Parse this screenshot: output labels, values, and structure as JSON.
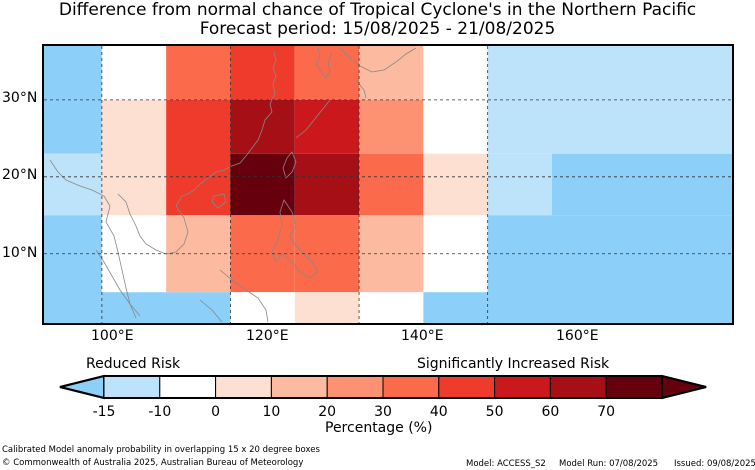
{
  "title": "Difference from normal chance of Tropical Cyclone's in the Northern Pacific",
  "subtitle": "Forecast period: 15/08/2025 - 21/08/2025",
  "lat_labels": [
    "30°N",
    "20°N",
    "10°N"
  ],
  "lon_labels": [
    "100°E",
    "120°E",
    "140°E",
    "160°E"
  ],
  "legend": {
    "left_label": "Reduced Risk",
    "right_label": "Significantly Increased Risk",
    "tick_labels": [
      "-15",
      "-10",
      "0",
      "10",
      "20",
      "30",
      "40",
      "50",
      "60",
      "70"
    ],
    "axis_label": "Percentage (%)",
    "colors": [
      "#bde3fb",
      "#ffffff",
      "#fee0d2",
      "#fcbba1",
      "#fc9272",
      "#fb6a4a",
      "#ef3b2c",
      "#cb181d",
      "#a50f15",
      "#67000d"
    ],
    "under_color": "#8ccff9",
    "over_color": "#67000d"
  },
  "footer": {
    "caption": "Calibrated Model anomaly probability in overlapping 15 x 20 degree boxes",
    "copyright": "© Commonwealth of Australia 2025, Australian Bureau of Meteorology",
    "model": "Model: ACCESS_S2",
    "run": "Model Run: 07/08/2025",
    "issued": "Issued: 09/08/2025"
  },
  "map_data": {
    "lon_range": [
      91,
      198
    ],
    "lat_range": [
      1,
      37
    ],
    "cells_deg": [
      {
        "lon": [
          91,
          100
        ],
        "lat": [
          23,
          37
        ],
        "color": "#8ccff9"
      },
      {
        "lon": [
          100,
          110
        ],
        "lat": [
          30,
          37
        ],
        "color": "#ffffff"
      },
      {
        "lon": [
          100,
          110
        ],
        "lat": [
          20,
          30
        ],
        "color": "#fee0d2"
      },
      {
        "lon": [
          91,
          100
        ],
        "lat": [
          15,
          23
        ],
        "color": "#bde3fb"
      },
      {
        "lon": [
          100,
          110
        ],
        "lat": [
          15,
          20
        ],
        "color": "#fee0d2"
      },
      {
        "lon": [
          91,
          100
        ],
        "lat": [
          1,
          15
        ],
        "color": "#8ccff9"
      },
      {
        "lon": [
          100,
          110
        ],
        "lat": [
          5,
          15
        ],
        "color": "#ffffff"
      },
      {
        "lon": [
          100,
          120
        ],
        "lat": [
          1,
          5
        ],
        "color": "#8ccff9"
      },
      {
        "lon": [
          110,
          120
        ],
        "lat": [
          30,
          37
        ],
        "color": "#fb6a4a"
      },
      {
        "lon": [
          110,
          120
        ],
        "lat": [
          15,
          30
        ],
        "color": "#ef3b2c"
      },
      {
        "lon": [
          110,
          120
        ],
        "lat": [
          5,
          15
        ],
        "color": "#fcbba1"
      },
      {
        "lon": [
          120,
          130
        ],
        "lat": [
          30,
          37
        ],
        "color": "#ef3b2c"
      },
      {
        "lon": [
          120,
          130
        ],
        "lat": [
          23,
          30
        ],
        "color": "#a50f15"
      },
      {
        "lon": [
          120,
          130
        ],
        "lat": [
          15,
          23
        ],
        "color": "#67000d"
      },
      {
        "lon": [
          120,
          130
        ],
        "lat": [
          5,
          15
        ],
        "color": "#fb6a4a"
      },
      {
        "lon": [
          120,
          130
        ],
        "lat": [
          1,
          5
        ],
        "color": "#ffffff"
      },
      {
        "lon": [
          130,
          140
        ],
        "lat": [
          30,
          37
        ],
        "color": "#fb6a4a"
      },
      {
        "lon": [
          130,
          140
        ],
        "lat": [
          23,
          30
        ],
        "color": "#cb181d"
      },
      {
        "lon": [
          130,
          140
        ],
        "lat": [
          15,
          23
        ],
        "color": "#a50f15"
      },
      {
        "lon": [
          130,
          140
        ],
        "lat": [
          5,
          15
        ],
        "color": "#fb6a4a"
      },
      {
        "lon": [
          130,
          140
        ],
        "lat": [
          1,
          5
        ],
        "color": "#fee0d2"
      },
      {
        "lon": [
          140,
          150
        ],
        "lat": [
          30,
          37
        ],
        "color": "#fcbba1"
      },
      {
        "lon": [
          140,
          150
        ],
        "lat": [
          23,
          30
        ],
        "color": "#fc9272"
      },
      {
        "lon": [
          140,
          150
        ],
        "lat": [
          15,
          23
        ],
        "color": "#fb6a4a"
      },
      {
        "lon": [
          140,
          150
        ],
        "lat": [
          5,
          15
        ],
        "color": "#fcbba1"
      },
      {
        "lon": [
          140,
          150
        ],
        "lat": [
          1,
          5
        ],
        "color": "#ffffff"
      },
      {
        "lon": [
          150,
          160
        ],
        "lat": [
          23,
          37
        ],
        "color": "#ffffff"
      },
      {
        "lon": [
          150,
          160
        ],
        "lat": [
          15,
          23
        ],
        "color": "#fee0d2"
      },
      {
        "lon": [
          150,
          160
        ],
        "lat": [
          5,
          15
        ],
        "color": "#ffffff"
      },
      {
        "lon": [
          150,
          160
        ],
        "lat": [
          1,
          5
        ],
        "color": "#8ccff9"
      },
      {
        "lon": [
          160,
          198
        ],
        "lat": [
          23,
          37
        ],
        "color": "#bde3fb"
      },
      {
        "lon": [
          160,
          170
        ],
        "lat": [
          15,
          23
        ],
        "color": "#bde3fb"
      },
      {
        "lon": [
          170,
          198
        ],
        "lat": [
          15,
          23
        ],
        "color": "#8ccff9"
      },
      {
        "lon": [
          160,
          198
        ],
        "lat": [
          1,
          15
        ],
        "color": "#8ccff9"
      }
    ]
  }
}
